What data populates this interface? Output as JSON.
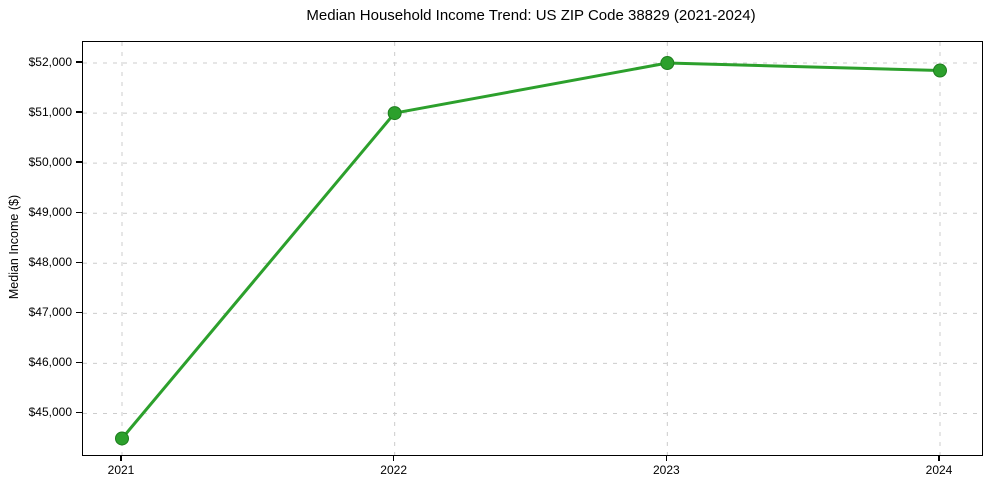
{
  "chart_data": {
    "type": "line",
    "title": "Median Household Income Trend: US ZIP Code 38829 (2021-2024)",
    "xlabel": "",
    "ylabel": "Median Income ($)",
    "categories": [
      "2021",
      "2022",
      "2023",
      "2024"
    ],
    "values": [
      44500,
      51000,
      52000,
      51850
    ],
    "yticks": [
      45000,
      46000,
      47000,
      48000,
      49000,
      50000,
      51000,
      52000
    ],
    "ytick_prefix": "$",
    "ylim": [
      44170,
      52420
    ],
    "grid": true,
    "grid_style": "dashed",
    "grid_color": "#cccccc",
    "legend_position": "none",
    "line_color": "#2ca02c",
    "marker": "circle",
    "marker_edge_color": "#1e7d1e",
    "background_color": "#ffffff",
    "spine_color": "#000000"
  }
}
